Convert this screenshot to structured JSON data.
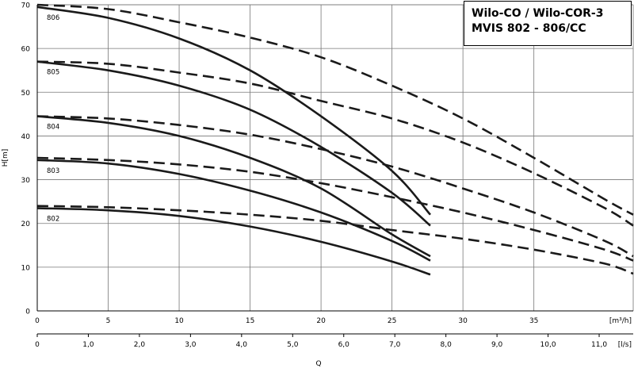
{
  "chart_data": {
    "type": "line",
    "title_lines": [
      "Wilo-CO / Wilo-COR-3",
      "MVIS 802 - 806/CC"
    ],
    "ylabel": "H[m]",
    "xlabel": "Q",
    "x_unit_top": "[m³/h]",
    "x_unit_bottom": "[l/s]",
    "xlim": [
      0,
      42
    ],
    "ylim": [
      0,
      70
    ],
    "y_ticks": [
      "0",
      "10",
      "20",
      "30",
      "40",
      "50",
      "60",
      "70"
    ],
    "x_ticks_m3h": [
      "0",
      "5",
      "10",
      "15",
      "20",
      "25",
      "30",
      "35"
    ],
    "x_ticks_ls": [
      "0",
      "1,0",
      "2,0",
      "3,0",
      "4,0",
      "5,0",
      "6,0",
      "7,0",
      "8,0",
      "9,0",
      "10,0",
      "11,0"
    ],
    "grid": true,
    "series": [
      {
        "name": "806",
        "solid": [
          [
            0,
            69.5
          ],
          [
            5,
            67
          ],
          [
            10,
            62.3
          ],
          [
            15,
            55
          ],
          [
            20,
            44.5
          ],
          [
            25,
            32
          ],
          [
            27.7,
            22
          ]
        ],
        "dashed": [
          [
            0,
            70
          ],
          [
            5,
            69
          ],
          [
            10,
            66
          ],
          [
            15,
            62.5
          ],
          [
            20,
            58
          ],
          [
            25,
            51.5
          ],
          [
            30,
            44
          ],
          [
            35,
            35
          ],
          [
            40,
            25.5
          ],
          [
            42,
            22
          ]
        ]
      },
      {
        "name": "805",
        "solid": [
          [
            0,
            57
          ],
          [
            5,
            55
          ],
          [
            10,
            51.5
          ],
          [
            15,
            46
          ],
          [
            20,
            37.5
          ],
          [
            25,
            27
          ],
          [
            27.7,
            19.5
          ]
        ],
        "dashed": [
          [
            0,
            57
          ],
          [
            5,
            56.5
          ],
          [
            10,
            54.5
          ],
          [
            15,
            52
          ],
          [
            20,
            48
          ],
          [
            25,
            44
          ],
          [
            30,
            38.5
          ],
          [
            35,
            31.5
          ],
          [
            40,
            23.5
          ],
          [
            42,
            19.5
          ]
        ]
      },
      {
        "name": "804",
        "solid": [
          [
            0,
            44.5
          ],
          [
            5,
            43
          ],
          [
            10,
            40
          ],
          [
            15,
            35
          ],
          [
            20,
            28
          ],
          [
            25,
            17.5
          ],
          [
            27.7,
            12.5
          ]
        ],
        "dashed": [
          [
            0,
            44.5
          ],
          [
            5,
            44
          ],
          [
            10,
            42.5
          ],
          [
            15,
            40.3
          ],
          [
            20,
            37
          ],
          [
            25,
            33
          ],
          [
            30,
            28
          ],
          [
            35,
            22.5
          ],
          [
            40,
            16
          ],
          [
            42,
            12.5
          ]
        ]
      },
      {
        "name": "803",
        "solid": [
          [
            0,
            34.5
          ],
          [
            5,
            33.7
          ],
          [
            10,
            31.3
          ],
          [
            15,
            27.5
          ],
          [
            20,
            22.5
          ],
          [
            25,
            16
          ],
          [
            27.7,
            11.5
          ]
        ],
        "dashed": [
          [
            0,
            35
          ],
          [
            5,
            34.5
          ],
          [
            10,
            33.5
          ],
          [
            15,
            31.8
          ],
          [
            20,
            29.2
          ],
          [
            25,
            26
          ],
          [
            30,
            22.5
          ],
          [
            35,
            18.5
          ],
          [
            40,
            14
          ],
          [
            42,
            11.5
          ]
        ]
      },
      {
        "name": "802",
        "solid": [
          [
            0,
            23.5
          ],
          [
            5,
            23
          ],
          [
            10,
            21.7
          ],
          [
            15,
            19.3
          ],
          [
            20,
            15.8
          ],
          [
            25,
            11.3
          ],
          [
            27.7,
            8.3
          ]
        ],
        "dashed": [
          [
            0,
            24
          ],
          [
            5,
            23.7
          ],
          [
            10,
            23
          ],
          [
            15,
            22
          ],
          [
            20,
            20.6
          ],
          [
            25,
            18.5
          ],
          [
            30,
            16.5
          ],
          [
            35,
            14
          ],
          [
            40,
            10.8
          ],
          [
            42,
            8.5
          ]
        ]
      }
    ]
  }
}
